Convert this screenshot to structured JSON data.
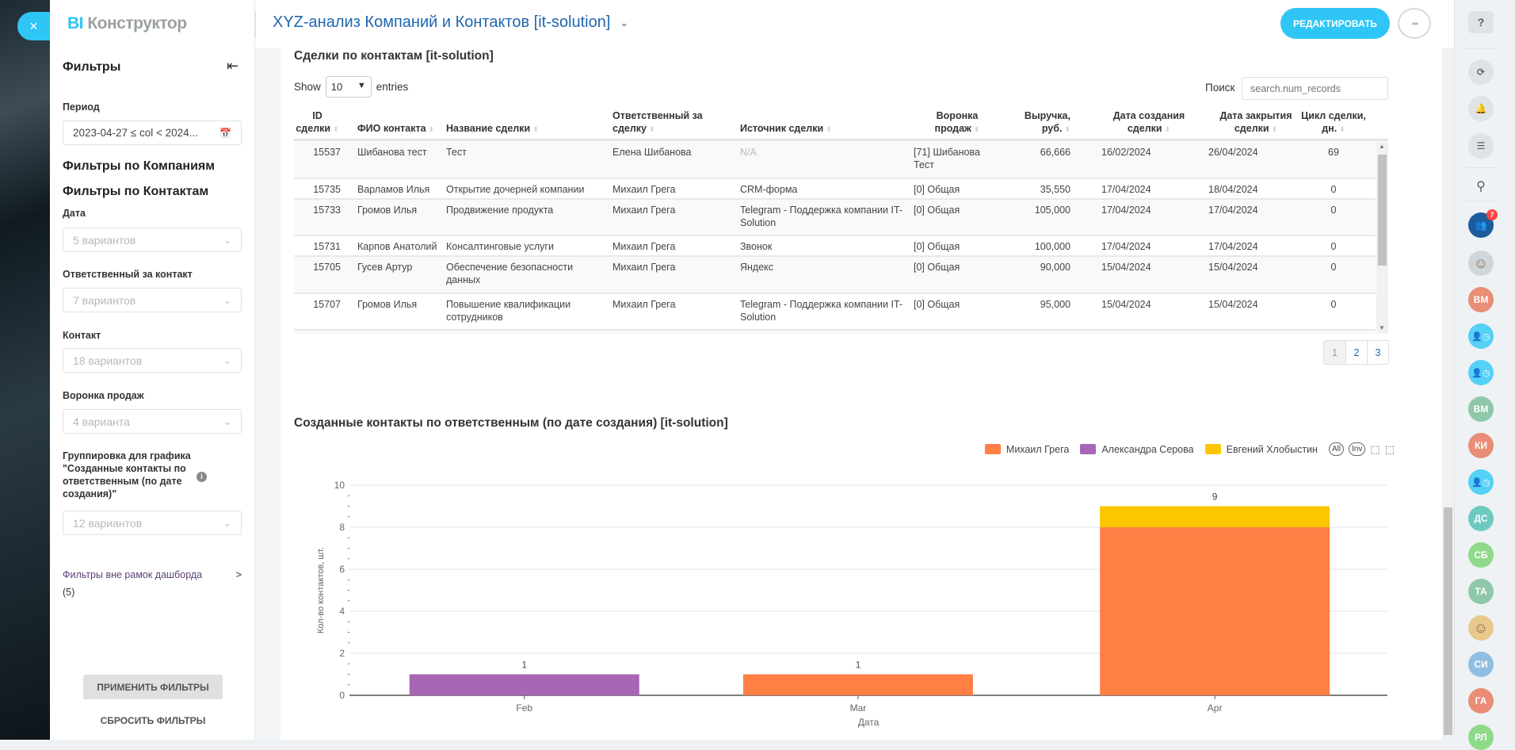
{
  "header": {
    "logo_bi": "BI",
    "logo_rest": "Конструктор",
    "dashboard_title": "XYZ-анализ Компаний и Контактов [it-solution]",
    "edit_label": "РЕДАКТИРОВАТЬ",
    "more_label": "•••",
    "close_label": "×"
  },
  "filters": {
    "title": "Фильтры",
    "period_label": "Период",
    "period_value": "2023-04-27 ≤ col < 2024...",
    "companies_heading": "Фильтры по Компаниям",
    "contacts_heading": "Фильтры по Контактам",
    "items": [
      {
        "label": "Дата",
        "value": "5 вариантов"
      },
      {
        "label": "Ответственный за контакт",
        "value": "7 вариантов"
      },
      {
        "label": "Контакт",
        "value": "18 вариантов"
      },
      {
        "label": "Воронка продаж",
        "value": "4 варианта"
      },
      {
        "label": "Группировка для графика \"Созданные контакты по ответственным (по дате создания)\"",
        "value": "12 вариантов"
      }
    ],
    "outside_label": "Фильтры вне рамок дашборда",
    "outside_count": "(5)",
    "apply_label": "ПРИМЕНИТЬ ФИЛЬТРЫ",
    "reset_label": "СБРОСИТЬ ФИЛЬТРЫ"
  },
  "table": {
    "title": "Сделки по контактам [it-solution]",
    "show_label": "Show",
    "entries_value": "10",
    "entries_label": "entries",
    "search_label": "Поиск",
    "search_placeholder": "search.num_records",
    "columns": [
      "ID сделки",
      "ФИО контакта",
      "Название сделки",
      "Ответственный за сделку",
      "Источник сделки",
      "Воронка продаж",
      "Выручка, руб.",
      "Дата создания сделки",
      "Дата закрытия сделки",
      "Цикл сделки, дн."
    ],
    "rows": [
      [
        "15537",
        "Шибанова тест",
        "Тест",
        "Елена Шибанова",
        "N/A",
        "[71] Шибанова Тест",
        "66,666",
        "16/02/2024",
        "26/04/2024",
        "69"
      ],
      [
        "15735",
        "Варламов Илья",
        "Открытие дочерней компании",
        "Михаил Грега",
        "CRM-форма",
        "[0] Общая",
        "35,550",
        "17/04/2024",
        "18/04/2024",
        "0"
      ],
      [
        "15733",
        "Громов Илья",
        "Продвижение продукта",
        "Михаил Грега",
        "Telegram - Поддержка компании IT-Solution",
        "[0] Общая",
        "105,000",
        "17/04/2024",
        "17/04/2024",
        "0"
      ],
      [
        "15731",
        "Карпов Анатолий",
        "Консалтинговые услуги",
        "Михаил Грега",
        "Звонок",
        "[0] Общая",
        "100,000",
        "17/04/2024",
        "17/04/2024",
        "0"
      ],
      [
        "15705",
        "Гусев Артур",
        "Обеспечение безопасности данных",
        "Михаил Грега",
        "Яндекс",
        "[0] Общая",
        "90,000",
        "15/04/2024",
        "15/04/2024",
        "0"
      ],
      [
        "15707",
        "Громов Илья",
        "Повышение квалификации сотрудников",
        "Михаил Грега",
        "Telegram - Поддержка компании IT-Solution",
        "[0] Общая",
        "95,000",
        "15/04/2024",
        "15/04/2024",
        "0"
      ]
    ],
    "pages": [
      "1",
      "2",
      "3"
    ],
    "current_page": "1"
  },
  "chart_data": {
    "type": "bar",
    "stacked": true,
    "title": "Созданные контакты по ответственным (по дате создания) [it-solution]",
    "xlabel": "Дата",
    "ylabel": "Кол-во контактов, шт.",
    "categories": [
      "Feb",
      "Mar",
      "Apr"
    ],
    "x": [
      "2024-02-01",
      "2024-03-01",
      "2024-04-01"
    ],
    "ylim": [
      0,
      10
    ],
    "yticks": [
      0,
      2,
      4,
      6,
      8,
      10
    ],
    "grid": true,
    "legend_position": "top-right",
    "legend_buttons": [
      "All",
      "Inv"
    ],
    "series": [
      {
        "name": "Михаил Грега",
        "color": "#ff7f45",
        "values": [
          0,
          1,
          8
        ]
      },
      {
        "name": "Александра Серова",
        "color": "#a866b5",
        "values": [
          1,
          0,
          0
        ]
      },
      {
        "name": "Евгений Хлобыстин",
        "color": "#fbc700",
        "values": [
          0,
          0,
          1
        ]
      }
    ],
    "totals": [
      1,
      1,
      9
    ]
  },
  "right_sidebar": {
    "chat_badge": "7",
    "avatars": [
      {
        "type": "photo",
        "color": "#cfd6da"
      },
      {
        "type": "initials",
        "text": "ВМ",
        "color": "#e98d77"
      },
      {
        "type": "clock-user",
        "color": "#55d0f6"
      },
      {
        "type": "clock-user",
        "color": "#55d0f6"
      },
      {
        "type": "initials",
        "text": "ВМ",
        "color": "#8fc8a8"
      },
      {
        "type": "initials",
        "text": "КИ",
        "color": "#e98d77"
      },
      {
        "type": "clock-user",
        "color": "#55d0f6"
      },
      {
        "type": "initials",
        "text": "ДС",
        "color": "#6cc9c0"
      },
      {
        "type": "initials",
        "text": "СБ",
        "color": "#8fd98a"
      },
      {
        "type": "initials",
        "text": "ТА",
        "color": "#8fc8a8"
      },
      {
        "type": "photo",
        "color": "#e9c98b"
      },
      {
        "type": "initials",
        "text": "СИ",
        "color": "#8fbfe0"
      },
      {
        "type": "initials",
        "text": "ГА",
        "color": "#e98d77"
      },
      {
        "type": "initials",
        "text": "РЛ",
        "color": "#8fd98a"
      }
    ]
  }
}
